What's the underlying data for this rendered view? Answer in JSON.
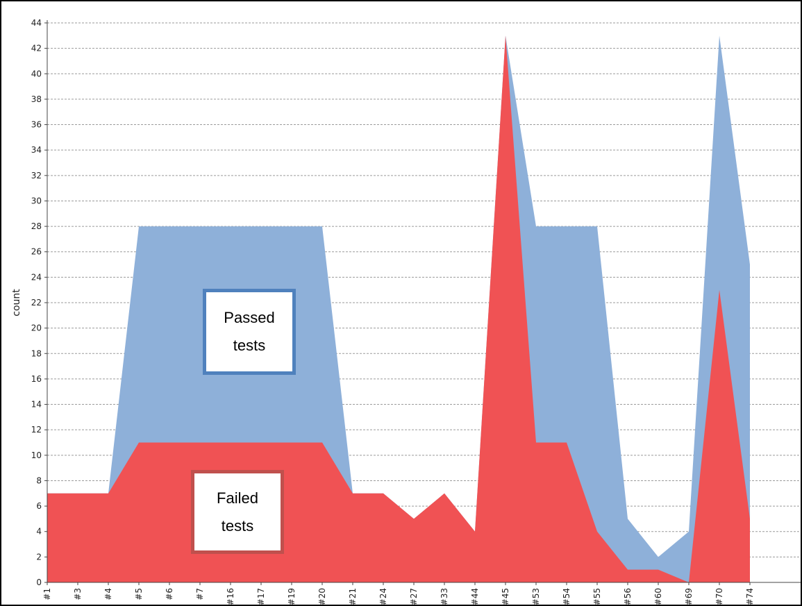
{
  "chart_data": {
    "type": "area",
    "ylabel": "count",
    "xlabel": "",
    "ylim": [
      0,
      44
    ],
    "y_ticks": [
      0,
      2,
      4,
      6,
      8,
      10,
      12,
      14,
      16,
      18,
      20,
      22,
      24,
      26,
      28,
      30,
      32,
      34,
      36,
      38,
      40,
      42,
      44
    ],
    "grid": true,
    "categories": [
      "#1",
      "#3",
      "#4",
      "#5",
      "#6",
      "#7",
      "#16",
      "#17",
      "#19",
      "#20",
      "#21",
      "#24",
      "#27",
      "#33",
      "#44",
      "#45",
      "#53",
      "#54",
      "#55",
      "#56",
      "#60",
      "#69",
      "#70",
      "#74"
    ],
    "series": [
      {
        "values": [
          7,
          7,
          7,
          28,
          28,
          28,
          28,
          28,
          28,
          28,
          7,
          7,
          5,
          7,
          4,
          43,
          28,
          28,
          28,
          5,
          2,
          4,
          43,
          25
        ],
        "color": "#8eb0d9"
      },
      {
        "values": [
          7,
          7,
          7,
          11,
          11,
          11,
          11,
          11,
          11,
          11,
          7,
          7,
          5,
          7,
          4,
          43,
          11,
          11,
          4,
          1,
          1,
          0,
          23,
          5
        ],
        "color": "#f05254"
      }
    ]
  },
  "annotations": {
    "passed": {
      "line1": "Passed",
      "line2": "tests",
      "border_color": "#4f81bd"
    },
    "failed": {
      "line1": "Failed",
      "line2": "tests",
      "border_color": "#c0504d"
    }
  }
}
